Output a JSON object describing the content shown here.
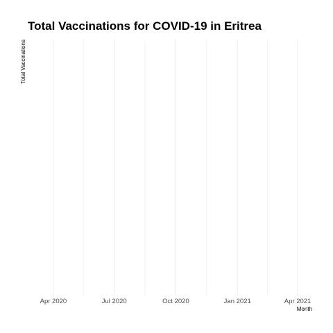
{
  "chart_data": {
    "type": "line",
    "title": "Total Vaccinations for COVID-19 in Eritrea",
    "xlabel": "Month",
    "ylabel": "Total Vaccinations",
    "x_ticks": [
      "Apr 2020",
      "Jul 2020",
      "Oct 2020",
      "Jan 2021",
      "Apr 2021"
    ],
    "x_tick_dates": [
      "2020-04-01",
      "2020-07-01",
      "2020-10-01",
      "2021-01-01",
      "2021-04-01"
    ],
    "xlim": [
      "2020-03-01",
      "2021-05-01"
    ],
    "grid": true,
    "legend": "none",
    "series": [
      {
        "values": []
      }
    ],
    "colors": {
      "gridline": "#ebebeb",
      "text": "#000000",
      "tick_text": "#4d4d4d"
    }
  }
}
